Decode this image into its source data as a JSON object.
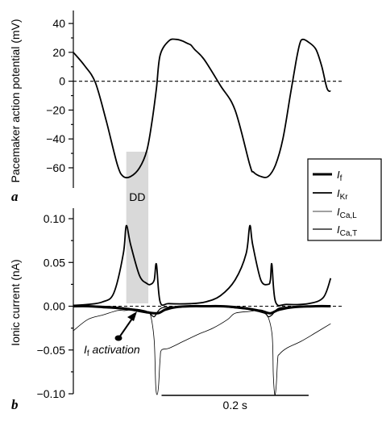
{
  "chart_data": [
    {
      "panel_label": "a",
      "type": "line",
      "ylabel": "Pacemaker action potential (mV)",
      "ylim": [
        -74,
        49
      ],
      "yticks": [
        40,
        20,
        0,
        -20,
        -40,
        -60
      ],
      "ytick_labels": [
        "40",
        "20",
        "0",
        "−20",
        "−40",
        "−60"
      ],
      "xlim": [
        0,
        0.365
      ],
      "reference_line": {
        "y": 0,
        "style": "dashed"
      },
      "series": [
        {
          "name": "",
          "x": [
            0,
            0.015,
            0.03,
            0.045,
            0.06,
            0.068,
            0.078,
            0.09,
            0.1,
            0.107,
            0.113,
            0.118,
            0.13,
            0.14,
            0.148,
            0.152,
            0.156,
            0.16,
            0.165,
            0.178,
            0.2,
            0.22,
            0.24,
            0.245,
            0.255,
            0.265,
            0.275,
            0.285,
            0.295,
            0.303,
            0.308,
            0.312,
            0.32,
            0.33,
            0.338,
            0.345,
            0.35
          ],
          "y": [
            20,
            11,
            -1,
            -28,
            -58,
            -66,
            -66,
            -60,
            -48,
            -28,
            -5,
            18,
            28,
            29,
            28,
            27,
            26,
            25,
            22,
            15,
            -3,
            -20,
            -58,
            -63,
            -66,
            -66,
            -58,
            -40,
            -10,
            14,
            26,
            29,
            27,
            22,
            10,
            -5,
            -7
          ]
        }
      ]
    },
    {
      "panel_label": "b",
      "type": "line",
      "ylabel": "Ionic current (nA)",
      "ylim": [
        -0.1,
        0.112
      ],
      "yticks": [
        0.1,
        0.05,
        0.0,
        -0.05,
        -0.1
      ],
      "ytick_labels": [
        "0.10",
        "0.05",
        "0.00",
        "−0.05",
        "−0.10"
      ],
      "xlim": [
        0,
        0.365
      ],
      "reference_line": {
        "y": 0,
        "style": "dashed"
      },
      "legend": {
        "position": "right",
        "entries": [
          "I_f",
          "I_Kr",
          "I_Ca,L",
          "I_Ca,T"
        ]
      },
      "legend_display": [
        {
          "main": "I",
          "sub": "f"
        },
        {
          "main": "I",
          "sub": "Kr"
        },
        {
          "main": "I",
          "sub": "Ca,L"
        },
        {
          "main": "I",
          "sub": "Ca,T"
        }
      ],
      "series": [
        {
          "name": "I_f",
          "x": [
            0,
            0.02,
            0.04,
            0.06,
            0.08,
            0.1,
            0.115,
            0.125,
            0.14,
            0.16,
            0.18,
            0.2,
            0.22,
            0.24,
            0.258,
            0.268,
            0.28,
            0.3,
            0.33,
            0.35
          ],
          "y": [
            0.0,
            0.0,
            -0.001,
            -0.002,
            -0.004,
            -0.007,
            -0.008,
            -0.004,
            -0.001,
            0.0,
            0.0,
            0.0,
            -0.001,
            -0.003,
            -0.006,
            -0.008,
            -0.004,
            -0.001,
            0.0,
            0.0
          ]
        },
        {
          "name": "I_Kr",
          "x": [
            0,
            0.02,
            0.04,
            0.055,
            0.068,
            0.072,
            0.078,
            0.09,
            0.1,
            0.105,
            0.11,
            0.113,
            0.118,
            0.13,
            0.16,
            0.18,
            0.2,
            0.22,
            0.235,
            0.24,
            0.244,
            0.255,
            0.265,
            0.268,
            0.27,
            0.275,
            0.29,
            0.32,
            0.34,
            0.35
          ],
          "y": [
            0.001,
            0.002,
            0.005,
            0.015,
            0.06,
            0.092,
            0.07,
            0.035,
            0.026,
            0.025,
            0.03,
            0.048,
            0.005,
            0.003,
            0.003,
            0.005,
            0.012,
            0.03,
            0.06,
            0.092,
            0.07,
            0.03,
            0.025,
            0.03,
            0.048,
            0.005,
            0.002,
            0.003,
            0.01,
            0.032
          ]
        },
        {
          "name": "I_Ca,L",
          "x": [
            0,
            0.02,
            0.04,
            0.06,
            0.07,
            0.08,
            0.09,
            0.1,
            0.105,
            0.11,
            0.112,
            0.114,
            0.116,
            0.118,
            0.12,
            0.13,
            0.15,
            0.17,
            0.19,
            0.21,
            0.22,
            0.24,
            0.26,
            0.27,
            0.272,
            0.274,
            0.276,
            0.278,
            0.28,
            0.29,
            0.31,
            0.33,
            0.35
          ],
          "y": [
            -0.028,
            -0.015,
            -0.01,
            -0.005,
            -0.005,
            -0.004,
            -0.005,
            -0.006,
            -0.01,
            -0.04,
            -0.09,
            -0.101,
            -0.09,
            -0.06,
            -0.05,
            -0.048,
            -0.04,
            -0.032,
            -0.025,
            -0.015,
            -0.008,
            -0.006,
            -0.006,
            -0.03,
            -0.08,
            -0.101,
            -0.09,
            -0.06,
            -0.055,
            -0.048,
            -0.04,
            -0.03,
            -0.02
          ]
        },
        {
          "name": "I_Ca,T",
          "x": [
            0,
            0.02,
            0.04,
            0.06,
            0.07,
            0.08,
            0.09,
            0.1,
            0.105,
            0.11,
            0.115,
            0.12,
            0.13,
            0.15,
            0.17,
            0.19,
            0.2,
            0.21,
            0.22,
            0.24,
            0.26,
            0.265,
            0.27,
            0.275,
            0.28,
            0.29,
            0.31,
            0.33,
            0.35
          ],
          "y": [
            0.0,
            0.0,
            0.0,
            -0.001,
            -0.002,
            -0.003,
            -0.004,
            -0.006,
            -0.009,
            -0.012,
            -0.006,
            -0.002,
            -0.001,
            0.0,
            0.0,
            0.0,
            0.0,
            -0.001,
            -0.002,
            -0.004,
            -0.008,
            -0.012,
            -0.01,
            -0.005,
            -0.002,
            -0.001,
            0.0,
            0.0,
            0.0
          ]
        }
      ],
      "annotations": [
        {
          "text": "DD",
          "kind": "shaded-interval",
          "x_range": [
            0.072,
            0.102
          ],
          "fill": "#d9d9d9"
        },
        {
          "kind": "label-with-arrow",
          "main": "I",
          "sub": "f",
          "rest": " activation"
        }
      ],
      "scale_bar": {
        "label": "0.2 s",
        "length_seconds": 0.2
      }
    }
  ]
}
